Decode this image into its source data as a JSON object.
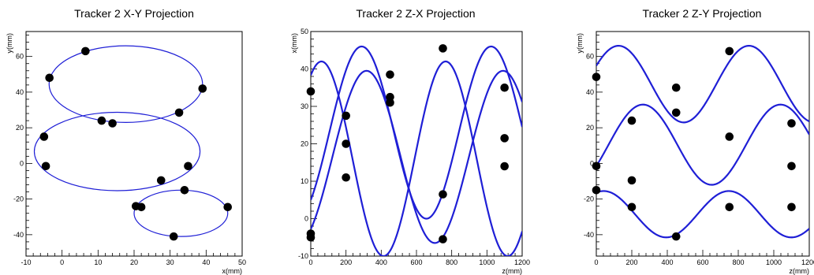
{
  "chart_data": [
    {
      "type": "scatter",
      "title": "Tracker 2 X-Y Projection",
      "xlabel": "x(mm)",
      "ylabel": "y(mm)",
      "xlim": [
        -10,
        50
      ],
      "ylim": [
        -52,
        74
      ],
      "xticks": [
        "-10",
        "0",
        "10",
        "20",
        "30",
        "40",
        "50"
      ],
      "yticks": [
        "-40",
        "-20",
        "0",
        "20",
        "40",
        "60"
      ],
      "fit_color": "#1f1fd6",
      "fit_width": 1.2,
      "points": [
        {
          "x": 6.5,
          "y": 63
        },
        {
          "x": -3.5,
          "y": 48
        },
        {
          "x": 39,
          "y": 42
        },
        {
          "x": 11,
          "y": 24
        },
        {
          "x": 14,
          "y": 22.5
        },
        {
          "x": 32.5,
          "y": 28.5
        },
        {
          "x": -5,
          "y": 15
        },
        {
          "x": -4.5,
          "y": -1.5
        },
        {
          "x": 35,
          "y": -1.5
        },
        {
          "x": 27.5,
          "y": -9.5
        },
        {
          "x": 34,
          "y": -15
        },
        {
          "x": 20.5,
          "y": -24
        },
        {
          "x": 22,
          "y": -24.5
        },
        {
          "x": 46,
          "y": -24.5
        },
        {
          "x": 31,
          "y": -41
        }
      ],
      "ellipses": [
        {
          "cx": 17.7,
          "cy": 44.5,
          "rx": 21.3,
          "ry": 21.5
        },
        {
          "cx": 15.3,
          "cy": 6.7,
          "rx": 23.0,
          "ry": 22.0
        },
        {
          "cx": 33,
          "cy": -28,
          "rx": 13.0,
          "ry": 13.0
        }
      ]
    },
    {
      "type": "line",
      "title": "Tracker 2 Z-X Projection",
      "xlabel": "z(mm)",
      "ylabel": "x(mm)",
      "xlim": [
        0,
        1200
      ],
      "ylim": [
        -10,
        50
      ],
      "xticks": [
        "0",
        "200",
        "400",
        "600",
        "800",
        "1000",
        "1200"
      ],
      "yticks": [
        "-10",
        "0",
        "10",
        "20",
        "30",
        "40",
        "50"
      ],
      "fit_color": "#1f1fd6",
      "fit_width": 2.2,
      "points": [
        {
          "x": 0,
          "y": 34
        },
        {
          "x": 0,
          "y": -4
        },
        {
          "x": 0,
          "y": -5
        },
        {
          "x": 200,
          "y": 27.5
        },
        {
          "x": 200,
          "y": 20
        },
        {
          "x": 200,
          "y": 11
        },
        {
          "x": 450,
          "y": 38.5
        },
        {
          "x": 450,
          "y": 32.5
        },
        {
          "x": 450,
          "y": 31
        },
        {
          "x": 750,
          "y": 45.5
        },
        {
          "x": 750,
          "y": 6.5
        },
        {
          "x": 750,
          "y": -5.5
        },
        {
          "x": 1100,
          "y": 35
        },
        {
          "x": 1100,
          "y": 21.5
        },
        {
          "x": 1100,
          "y": 14
        }
      ],
      "series": [
        {
          "offset": 23,
          "amplitude": 23,
          "period": 735,
          "phase": -0.8987,
          "z_end": 1200
        },
        {
          "offset": 16.5,
          "amplitude": 23,
          "period": 775,
          "phase": -0.9957,
          "z_end": 1200
        },
        {
          "offset": 16.0,
          "amplitude": 26,
          "period": 705,
          "phase": 1.0308,
          "z_end": 1200
        }
      ]
    },
    {
      "type": "line",
      "title": "Tracker 2 Z-Y Projection",
      "xlabel": "z(mm)",
      "ylabel": "y(mm)",
      "xlim": [
        0,
        1200
      ],
      "ylim": [
        -52,
        74
      ],
      "xticks": [
        "0",
        "200",
        "400",
        "600",
        "800",
        "1000",
        "1200"
      ],
      "yticks": [
        "-40",
        "-20",
        "0",
        "20",
        "40",
        "60"
      ],
      "fit_color": "#1f1fd6",
      "fit_width": 2.2,
      "points": [
        {
          "x": 0,
          "y": 48.5
        },
        {
          "x": 200,
          "y": 24
        },
        {
          "x": 450,
          "y": 42.5
        },
        {
          "x": 750,
          "y": 63
        },
        {
          "x": 1100,
          "y": 22.5
        },
        {
          "x": 0,
          "y": -1.5
        },
        {
          "x": 200,
          "y": -9.5
        },
        {
          "x": 450,
          "y": 28.5
        },
        {
          "x": 750,
          "y": 15
        },
        {
          "x": 1100,
          "y": -1.5
        },
        {
          "x": 0,
          "y": -15
        },
        {
          "x": 200,
          "y": -24.5
        },
        {
          "x": 450,
          "y": -41
        },
        {
          "x": 750,
          "y": -24.5
        },
        {
          "x": 1100,
          "y": -24.5
        }
      ],
      "series": [
        {
          "offset": 44.5,
          "amplitude": 21.5,
          "period": 735,
          "phase": 0.5,
          "z_end": 1200
        },
        {
          "offset": 10.5,
          "amplitude": 22.5,
          "period": 775,
          "phase": -0.56,
          "z_end": 1200
        },
        {
          "offset": -28.5,
          "amplitude": 13,
          "period": 705,
          "phase": 1.2,
          "z_end": 1200
        }
      ]
    }
  ]
}
